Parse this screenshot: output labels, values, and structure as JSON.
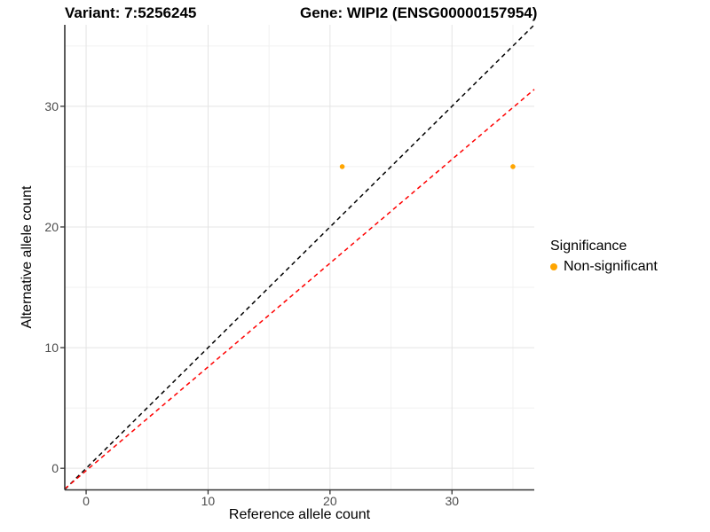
{
  "chart_data": {
    "type": "scatter",
    "titles": {
      "left": "Variant: 7:5256245",
      "right": "Gene: WIPI2 (ENSG00000157954)"
    },
    "xlabel": "Reference allele count",
    "ylabel": "Alternative allele count",
    "xlim": [
      -1.75,
      36.75
    ],
    "ylim": [
      -1.75,
      36.75
    ],
    "xticks": [
      0,
      10,
      20,
      30
    ],
    "yticks": [
      0,
      10,
      20,
      30
    ],
    "xticks_minor": [
      5,
      15,
      25,
      35
    ],
    "yticks_minor": [
      5,
      15,
      25,
      35
    ],
    "grid": true,
    "points": [
      {
        "x": 21,
        "y": 25,
        "label": "Non-significant"
      },
      {
        "x": 35,
        "y": 25,
        "label": "Non-significant"
      }
    ],
    "point_color": "#FFA500",
    "point_radius": 2.8,
    "lines": [
      {
        "name": "identity-line",
        "color": "#000000",
        "style": "dashed",
        "x1": -1.75,
        "y1": -1.75,
        "x2": 36.75,
        "y2": 36.75
      },
      {
        "name": "ratio-line",
        "color": "#FF0000",
        "style": "dashed",
        "x1": -1.75,
        "y1": -1.7,
        "x2": 36.75,
        "y2": 31.4
      }
    ],
    "legend": {
      "title": "Significance",
      "position": "right",
      "items": [
        {
          "label": "Non-significant",
          "color": "#FFA500"
        }
      ]
    },
    "colors": {
      "grid_major": "#E4E4E4",
      "grid_minor": "#F1F1F1",
      "axis_line": "#333333",
      "tick_label": "#4D4D4D"
    }
  }
}
